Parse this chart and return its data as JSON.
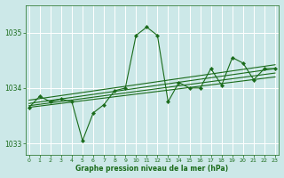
{
  "background_color": "#cce8e8",
  "plot_bg_color": "#cce8e8",
  "line_color": "#1a6b1a",
  "marker_color": "#1a6b1a",
  "grid_color": "#ffffff",
  "xlabel": "Graphe pression niveau de la mer (hPa)",
  "xlabel_color": "#1a6b1a",
  "tick_color": "#1a6b1a",
  "ylim": [
    1032.8,
    1035.5
  ],
  "yticks": [
    1033,
    1034,
    1035
  ],
  "xticks": [
    0,
    1,
    2,
    3,
    4,
    5,
    6,
    7,
    8,
    9,
    10,
    11,
    12,
    13,
    14,
    15,
    16,
    17,
    18,
    19,
    20,
    21,
    22,
    23
  ],
  "main_series": [
    1033.65,
    1033.85,
    1033.75,
    1033.8,
    1033.75,
    1033.05,
    1033.55,
    1033.7,
    1033.95,
    1034.0,
    1034.95,
    1035.1,
    1034.95,
    1033.75,
    1034.1,
    1034.0,
    1034.0,
    1034.35,
    1034.05,
    1034.55,
    1034.45,
    1034.15,
    1034.35,
    1034.35
  ],
  "trend_lines": [
    {
      "x": [
        0,
        23
      ],
      "y": [
        1033.65,
        1034.2
      ]
    },
    {
      "x": [
        0,
        23
      ],
      "y": [
        1033.68,
        1034.27
      ]
    },
    {
      "x": [
        0,
        23
      ],
      "y": [
        1033.72,
        1034.35
      ]
    },
    {
      "x": [
        0,
        23
      ],
      "y": [
        1033.78,
        1034.42
      ]
    }
  ]
}
